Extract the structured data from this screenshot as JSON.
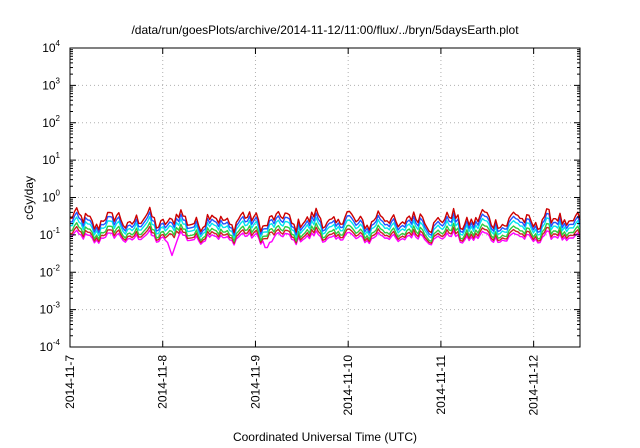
{
  "chart_data": {
    "type": "line",
    "title": "/data/run/goesPlots/archive/2014-11-12/11:00/flux/../bryn/5daysEarth.plot",
    "xlabel": "Coordinated Universal Time (UTC)",
    "ylabel": "cGy/day",
    "yscale": "log",
    "ylim": [
      0.0001,
      10000
    ],
    "yticks": [
      {
        "base": "10",
        "exp": "-4"
      },
      {
        "base": "10",
        "exp": "-3"
      },
      {
        "base": "10",
        "exp": "-2"
      },
      {
        "base": "10",
        "exp": "-1"
      },
      {
        "base": "10",
        "exp": "0"
      },
      {
        "base": "10",
        "exp": "1"
      },
      {
        "base": "10",
        "exp": "2"
      },
      {
        "base": "10",
        "exp": "3"
      },
      {
        "base": "10",
        "exp": "4"
      }
    ],
    "xlim": [
      "2014-11-07",
      "2014-11-12 12:00"
    ],
    "xticks": [
      "2014-11-7",
      "2014-11-8",
      "2014-11-9",
      "2014-11-10",
      "2014-11-11",
      "2014-11-12"
    ],
    "grid": true,
    "legend": "none",
    "series": [
      {
        "color": "#ff00ff",
        "level": 0.085,
        "dip": 0.028
      },
      {
        "color": "#cc2222",
        "level": 0.1
      },
      {
        "color": "#2ecc40",
        "level": 0.12
      },
      {
        "color": "#00e5ee",
        "level": 0.16
      },
      {
        "color": "#2255ff",
        "level": 0.2
      },
      {
        "color": "#cc0000",
        "level": 0.25
      }
    ]
  }
}
